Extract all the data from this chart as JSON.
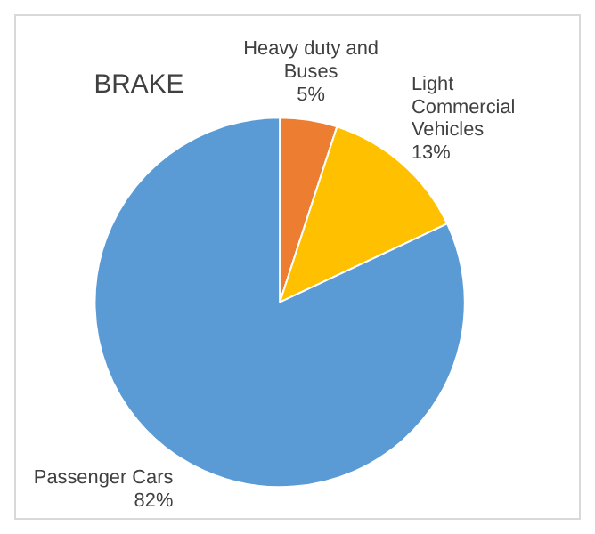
{
  "chart_data": {
    "type": "pie",
    "title": "BRAKE",
    "categories": [
      "Heavy duty and Buses",
      "Light Commercial Vehicles",
      "Passenger Cars"
    ],
    "values": [
      5,
      13,
      82
    ],
    "colors": [
      "#ed7d31",
      "#ffc000",
      "#5b9bd5"
    ],
    "value_labels": [
      "5%",
      "13%",
      "82%"
    ],
    "legend": false
  }
}
